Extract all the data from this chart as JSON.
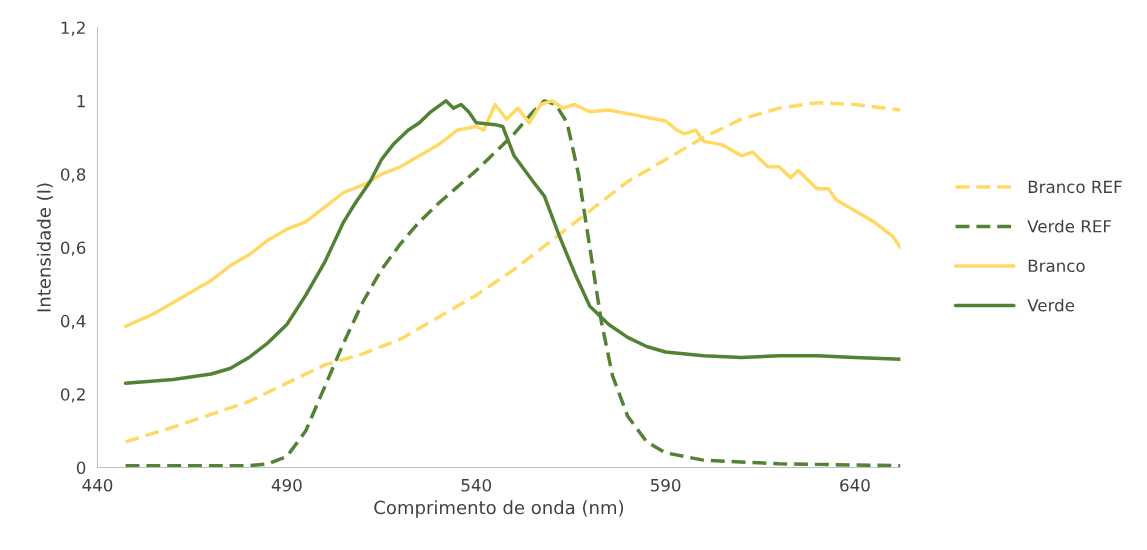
{
  "chart_data": {
    "type": "line",
    "xlabel": "Comprimento de onda (nm)",
    "ylabel": "Intensidade (I)",
    "xlim": [
      440,
      652
    ],
    "xticks": [
      440,
      490,
      540,
      590,
      640
    ],
    "ylim": [
      0,
      1.2
    ],
    "yticks": [
      {
        "value": 0,
        "label": "0"
      },
      {
        "value": 0.2,
        "label": "0,2"
      },
      {
        "value": 0.4,
        "label": "0,4"
      },
      {
        "value": 0.6,
        "label": "0,6"
      },
      {
        "value": 0.8,
        "label": "0,8"
      },
      {
        "value": 1,
        "label": "1"
      },
      {
        "value": 1.2,
        "label": "1,2"
      }
    ],
    "grid": false,
    "legend": "right",
    "marker": "none",
    "series": [
      {
        "name": "Branco REF",
        "color": "#ffd966",
        "line_style": "dashed",
        "x": [
          447.4,
          460,
          470,
          480,
          490,
          500,
          510,
          520,
          530,
          540,
          550,
          560,
          570,
          580,
          590,
          600,
          610,
          620,
          630,
          640,
          652
        ],
        "values": [
          0.07,
          0.11,
          0.145,
          0.18,
          0.23,
          0.28,
          0.31,
          0.35,
          0.41,
          0.47,
          0.54,
          0.62,
          0.7,
          0.78,
          0.84,
          0.9,
          0.95,
          0.98,
          0.995,
          0.99,
          0.975
        ]
      },
      {
        "name": "Verde REF",
        "color": "#548235",
        "line_style": "dashed",
        "x": [
          447.4,
          460,
          470,
          480,
          485,
          490,
          495,
          500,
          505,
          510,
          515,
          520,
          525,
          530,
          540,
          550,
          555,
          558,
          561,
          564,
          567,
          570,
          573,
          576,
          580,
          585,
          590,
          600,
          620,
          652
        ],
        "values": [
          0.005,
          0.005,
          0.005,
          0.005,
          0.01,
          0.03,
          0.1,
          0.22,
          0.34,
          0.45,
          0.54,
          0.61,
          0.67,
          0.72,
          0.81,
          0.91,
          0.97,
          1.0,
          0.99,
          0.94,
          0.8,
          0.6,
          0.4,
          0.25,
          0.14,
          0.07,
          0.04,
          0.02,
          0.01,
          0.005
        ]
      },
      {
        "name": "Branco",
        "color": "#ffd966",
        "line_style": "solid",
        "x": [
          447.4,
          455,
          460,
          465,
          470,
          475,
          480,
          485,
          490,
          495,
          500,
          505,
          510,
          515,
          520,
          525,
          530,
          535,
          540,
          542,
          545,
          548,
          551,
          554,
          557,
          560,
          563,
          566,
          570,
          575,
          580,
          585,
          590,
          593,
          595,
          598,
          600,
          605,
          610,
          613,
          617,
          620,
          623,
          625,
          628,
          630,
          633,
          635,
          640,
          645,
          650,
          652
        ],
        "values": [
          0.385,
          0.42,
          0.45,
          0.48,
          0.51,
          0.55,
          0.58,
          0.62,
          0.65,
          0.67,
          0.71,
          0.75,
          0.77,
          0.8,
          0.82,
          0.85,
          0.88,
          0.92,
          0.93,
          0.92,
          0.99,
          0.95,
          0.98,
          0.94,
          0.99,
          1.0,
          0.98,
          0.99,
          0.97,
          0.975,
          0.965,
          0.955,
          0.945,
          0.92,
          0.91,
          0.92,
          0.89,
          0.88,
          0.85,
          0.86,
          0.82,
          0.82,
          0.79,
          0.81,
          0.78,
          0.76,
          0.76,
          0.73,
          0.7,
          0.67,
          0.63,
          0.6
        ]
      },
      {
        "name": "Verde",
        "color": "#548235",
        "line_style": "solid",
        "x": [
          447.4,
          460,
          470,
          475,
          480,
          485,
          490,
          495,
          500,
          505,
          508,
          512,
          515,
          518,
          522,
          525,
          528,
          530,
          532,
          534,
          536,
          538,
          540,
          545,
          547,
          550,
          555,
          558,
          562,
          566,
          570,
          575,
          580,
          585,
          590,
          600,
          610,
          620,
          630,
          640,
          652
        ],
        "values": [
          0.23,
          0.24,
          0.255,
          0.27,
          0.3,
          0.34,
          0.39,
          0.47,
          0.56,
          0.67,
          0.72,
          0.78,
          0.84,
          0.88,
          0.92,
          0.94,
          0.97,
          0.985,
          1.0,
          0.98,
          0.99,
          0.97,
          0.94,
          0.935,
          0.93,
          0.85,
          0.78,
          0.74,
          0.63,
          0.53,
          0.44,
          0.39,
          0.355,
          0.33,
          0.315,
          0.305,
          0.3,
          0.305,
          0.305,
          0.3,
          0.295
        ]
      }
    ]
  }
}
